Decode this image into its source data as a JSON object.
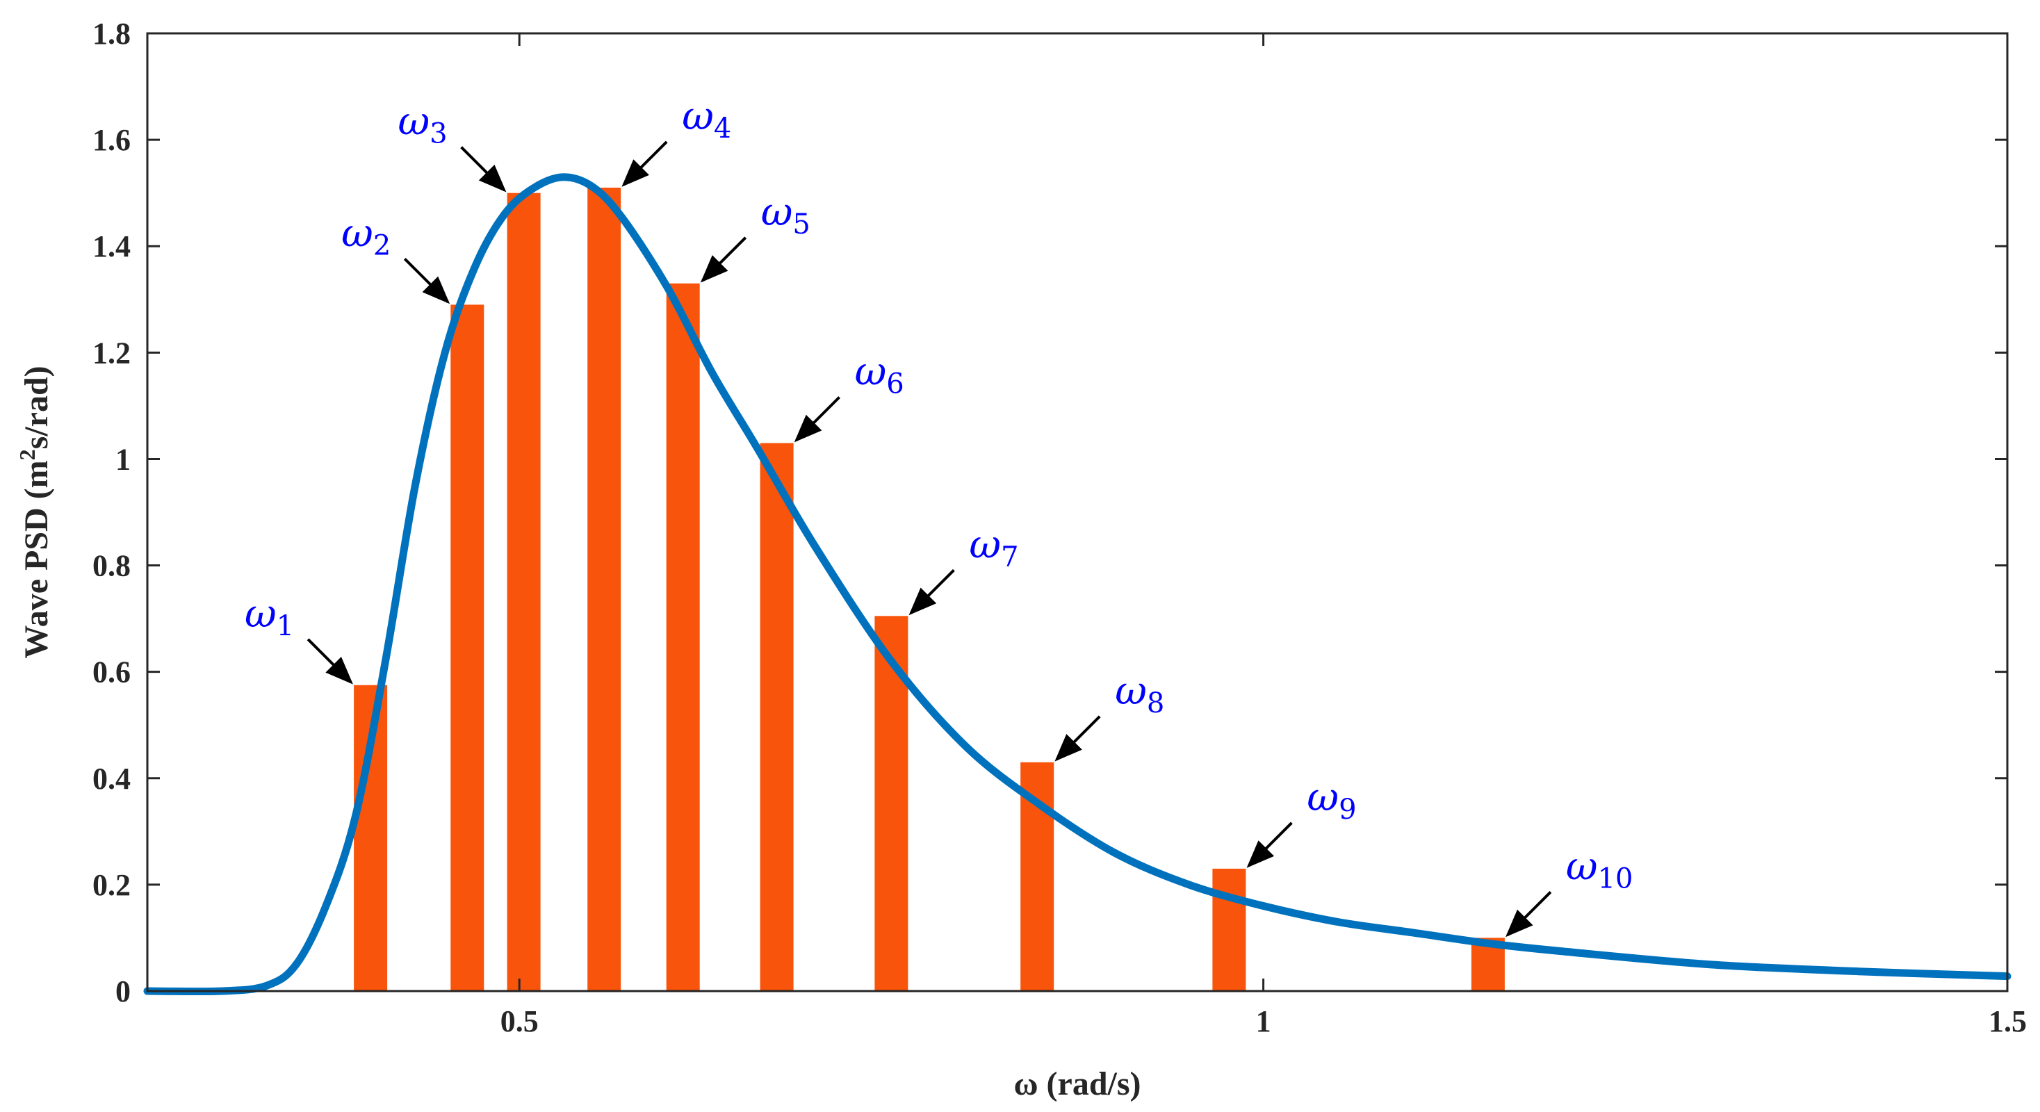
{
  "chart_data": {
    "type": "bar",
    "title": "",
    "xlabel": "ω (rad/s)",
    "ylabel_parts": {
      "before": "Wave PSD (m",
      "superscript": "2",
      "after": "s/rad)"
    },
    "xlim": [
      0.25,
      1.5
    ],
    "ylim": [
      0,
      1.8
    ],
    "xticks": [
      0.5,
      1,
      1.5
    ],
    "xtick_labels": [
      "0.5",
      "1",
      "1.5"
    ],
    "yticks": [
      0,
      0.2,
      0.4,
      0.6,
      0.8,
      1,
      1.2,
      1.4,
      1.6,
      1.8
    ],
    "ytick_labels": [
      "0",
      "0.2",
      "0.4",
      "0.6",
      "0.8",
      "1",
      "1.2",
      "1.4",
      "1.6",
      "1.8"
    ],
    "grid": false,
    "bars": [
      {
        "label": "ω1",
        "symbol": "ω",
        "subscript": "1",
        "x": 0.4,
        "value": 0.575
      },
      {
        "label": "ω2",
        "symbol": "ω",
        "subscript": "2",
        "x": 0.465,
        "value": 1.29
      },
      {
        "label": "ω3",
        "symbol": "ω",
        "subscript": "3",
        "x": 0.503,
        "value": 1.5
      },
      {
        "label": "ω4",
        "symbol": "ω",
        "subscript": "4",
        "x": 0.557,
        "value": 1.51
      },
      {
        "label": "ω5",
        "symbol": "ω",
        "subscript": "5",
        "x": 0.61,
        "value": 1.33
      },
      {
        "label": "ω6",
        "symbol": "ω",
        "subscript": "6",
        "x": 0.673,
        "value": 1.03
      },
      {
        "label": "ω7",
        "symbol": "ω",
        "subscript": "7",
        "x": 0.75,
        "value": 0.705
      },
      {
        "label": "ω8",
        "symbol": "ω",
        "subscript": "8",
        "x": 0.848,
        "value": 0.43
      },
      {
        "label": "ω9",
        "symbol": "ω",
        "subscript": "9",
        "x": 0.977,
        "value": 0.23
      },
      {
        "label": "ω10",
        "symbol": "ω",
        "subscript": "10",
        "x": 1.151,
        "value": 0.1
      }
    ],
    "curve": {
      "name": "Wave PSD spectrum",
      "type": "line",
      "x": [
        0.25,
        0.3,
        0.33,
        0.35,
        0.37,
        0.39,
        0.41,
        0.43,
        0.45,
        0.47,
        0.49,
        0.51,
        0.53,
        0.55,
        0.57,
        0.6,
        0.63,
        0.66,
        0.7,
        0.75,
        0.8,
        0.85,
        0.9,
        0.95,
        1.0,
        1.05,
        1.1,
        1.15,
        1.2,
        1.3,
        1.4,
        1.5
      ],
      "y": [
        0,
        0,
        0.01,
        0.05,
        0.16,
        0.33,
        0.62,
        0.95,
        1.2,
        1.36,
        1.46,
        1.51,
        1.53,
        1.51,
        1.45,
        1.32,
        1.16,
        1.02,
        0.83,
        0.62,
        0.46,
        0.35,
        0.26,
        0.2,
        0.16,
        0.13,
        0.11,
        0.09,
        0.075,
        0.05,
        0.037,
        0.028
      ]
    },
    "colors": {
      "bar": "#f9540b",
      "curve": "#0072bd",
      "label": "#0000ff",
      "axis": "#262626",
      "arrow": "#000000"
    }
  }
}
